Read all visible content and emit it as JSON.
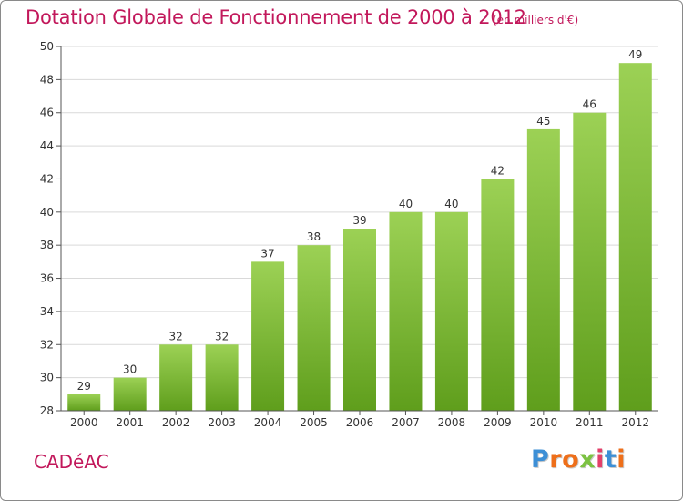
{
  "header": {
    "title": "Dotation Globale de Fonctionnement de 2000 à 2012",
    "subtitle": "(en milliers d'€)"
  },
  "footer": {
    "commune": "CADéAC",
    "logo_letters": [
      "P",
      "r",
      "o",
      "x",
      "i",
      "t",
      "i"
    ]
  },
  "colors": {
    "title": "#c2185b",
    "bar_top": "#9cd155",
    "bar_bottom": "#5f9e1c",
    "grid": "#d9d9d9",
    "logo": [
      "#3d8fd6",
      "#ee6f1a",
      "#ee6f1a",
      "#7cc242",
      "#e33f6a",
      "#3d8fd6",
      "#ee6f1a"
    ]
  },
  "chart_data": {
    "type": "bar",
    "title": "Dotation Globale de Fonctionnement de 2000 à 2012",
    "subtitle": "(en milliers d'€)",
    "xlabel": "",
    "ylabel": "",
    "categories": [
      "2000",
      "2001",
      "2002",
      "2003",
      "2004",
      "2005",
      "2006",
      "2007",
      "2008",
      "2009",
      "2010",
      "2011",
      "2012"
    ],
    "values": [
      29,
      30,
      32,
      32,
      37,
      38,
      39,
      40,
      40,
      42,
      45,
      46,
      49
    ],
    "ylim": [
      28,
      50
    ],
    "yticks": [
      28,
      30,
      32,
      34,
      36,
      38,
      40,
      42,
      44,
      46,
      48,
      50
    ],
    "grid": true,
    "legend": "none"
  }
}
